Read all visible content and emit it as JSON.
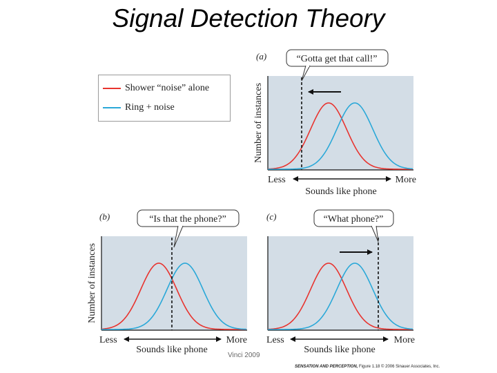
{
  "title": "Signal Detection Theory",
  "legend": {
    "items": [
      {
        "label": "Shower “noise” alone",
        "color": "#e8332e"
      },
      {
        "label": "Ring + noise",
        "color": "#2aa8d8"
      }
    ]
  },
  "colors": {
    "plot_background": "#d3dde6",
    "noise_curve": "#e8332e",
    "signal_curve": "#2aa8d8"
  },
  "panels": [
    {
      "id": "a",
      "label": "(a)",
      "callout": "“Gotta get that call!”",
      "criterion_shift": "left",
      "ylabel": "Number of instances",
      "x_less": "Less",
      "x_more": "More",
      "xlabel": "Sounds like phone"
    },
    {
      "id": "b",
      "label": "(b)",
      "callout": "“Is that the phone?”",
      "criterion_shift": "none",
      "ylabel": "Number of instances",
      "x_less": "Less",
      "x_more": "More",
      "xlabel": "Sounds like phone"
    },
    {
      "id": "c",
      "label": "(c)",
      "callout": "“What phone?”",
      "criterion_shift": "right",
      "ylabel": "",
      "x_less": "Less",
      "x_more": "More",
      "xlabel": "Sounds like phone"
    }
  ],
  "caption": "Vinci 2009",
  "credit": {
    "book": "SENSATION AND PERCEPTION,",
    "rest": "Figure 1.18 © 2006 Sinauer Associates, Inc."
  }
}
